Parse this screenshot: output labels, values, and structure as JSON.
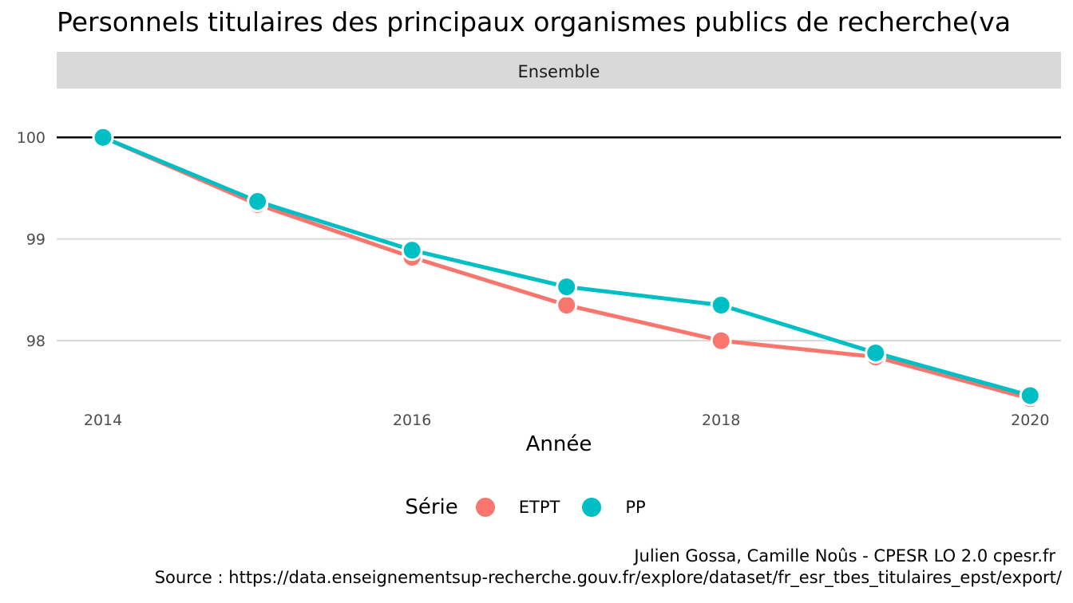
{
  "title": "Personnels titulaires des principaux organismes publics de recherche(va",
  "caption": {
    "line1": "Julien Gossa, Camille Noûs - CPESR LO 2.0 cpesr.fr",
    "line2": "Source : https://data.enseignementsup-recherche.gouv.fr/explore/dataset/fr_esr_tbes_titulaires_epst/export/"
  },
  "chart_data": {
    "type": "line",
    "facet": "Ensemble",
    "xlabel": "Année",
    "ylabel": "",
    "x": [
      2014,
      2015,
      2016,
      2017,
      2018,
      2019,
      2020
    ],
    "xticks": [
      "2014",
      "2016",
      "2018",
      "2020"
    ],
    "yticks": [
      "98",
      "99",
      "100"
    ],
    "xlim": [
      2013.7,
      2020.2
    ],
    "ylim": [
      97.35,
      100.48
    ],
    "reference_line": 100,
    "grid": true,
    "legend": {
      "title": "Série",
      "position": "bottom"
    },
    "series": [
      {
        "name": "ETPT",
        "color": "#F8766D",
        "values": [
          100.0,
          99.34,
          98.82,
          98.35,
          98.0,
          97.84,
          97.43
        ]
      },
      {
        "name": "PP",
        "color": "#00BFC4",
        "values": [
          100.0,
          99.37,
          98.89,
          98.53,
          98.35,
          97.88,
          97.46
        ]
      }
    ]
  }
}
